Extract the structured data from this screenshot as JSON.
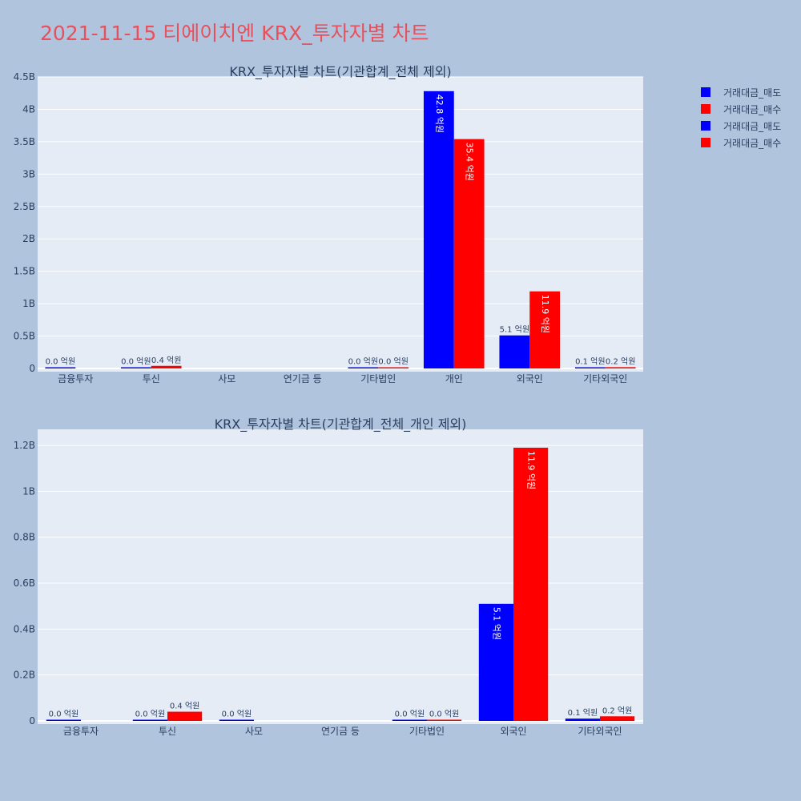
{
  "page": {
    "title": "2021-11-15 티에이치엔 KRX_투자자별 차트",
    "background": "#b0c4de",
    "title_color": "#e8505b",
    "plot_background": "#e5ecf6"
  },
  "legend": {
    "placement": "top-right",
    "items": [
      {
        "label": "거래대금_매도",
        "color": "#0000ff"
      },
      {
        "label": "거래대금_매수",
        "color": "#ff0000"
      },
      {
        "label": "거래대금_매도",
        "color": "#0000ff"
      },
      {
        "label": "거래대금_매수",
        "color": "#ff0000"
      }
    ]
  },
  "chart_data": [
    {
      "type": "bar",
      "title": "KRX_투자자별 차트(기관합계_전체 제외)",
      "categories": [
        "금융투자",
        "투신",
        "사모",
        "연기금 등",
        "기타법인",
        "개인",
        "외국인",
        "기타외국인"
      ],
      "ylim": [
        0,
        4.5
      ],
      "yticks": [
        0,
        0.5,
        1,
        1.5,
        2,
        2.5,
        3,
        3.5,
        4,
        4.5
      ],
      "ytick_labels": [
        "0",
        "0.5B",
        "1B",
        "1.5B",
        "2B",
        "2.5B",
        "3B",
        "3.5B",
        "4B",
        "4.5B"
      ],
      "grid": true,
      "series": [
        {
          "name": "거래대금_매도",
          "color": "#0000ff",
          "values": [
            0.0,
            0.0,
            null,
            null,
            0.0,
            4.28,
            0.51,
            0.01
          ],
          "labels": [
            "0.0 억원",
            "0.0 억원",
            "",
            "",
            "0.0 억원",
            "42.8 억원",
            "5.1 억원",
            "0.1 억원"
          ]
        },
        {
          "name": "거래대금_매수",
          "color": "#ff0000",
          "values": [
            null,
            0.04,
            null,
            null,
            0.0,
            3.54,
            1.19,
            0.02
          ],
          "labels": [
            "",
            "0.4 억원",
            "",
            "",
            "0.0 억원",
            "35.4 억원",
            "11.9 억원",
            "0.2 억원"
          ]
        }
      ]
    },
    {
      "type": "bar",
      "title": "KRX_투자자별 차트(기관합계_전체_개인 제외)",
      "categories": [
        "금융투자",
        "투신",
        "사모",
        "연기금 등",
        "기타법인",
        "외국인",
        "기타외국인"
      ],
      "ylim": [
        0,
        1.27
      ],
      "yticks": [
        0,
        0.2,
        0.4,
        0.6,
        0.8,
        1,
        1.2
      ],
      "ytick_labels": [
        "0",
        "0.2B",
        "0.4B",
        "0.6B",
        "0.8B",
        "1B",
        "1.2B"
      ],
      "grid": true,
      "series": [
        {
          "name": "거래대금_매도",
          "color": "#0000ff",
          "values": [
            0.0,
            0.0,
            0.0,
            null,
            0.0,
            0.51,
            0.01
          ],
          "labels": [
            "0.0 억원",
            "0.0 억원",
            "0.0 억원",
            "",
            "0.0 억원",
            "5.1 억원",
            "0.1 억원"
          ]
        },
        {
          "name": "거래대금_매수",
          "color": "#ff0000",
          "values": [
            null,
            0.04,
            null,
            null,
            0.0,
            1.19,
            0.02
          ],
          "labels": [
            "",
            "0.4 억원",
            "",
            "",
            "0.0 억원",
            "11.9 억원",
            "0.2 억원"
          ]
        }
      ]
    }
  ]
}
